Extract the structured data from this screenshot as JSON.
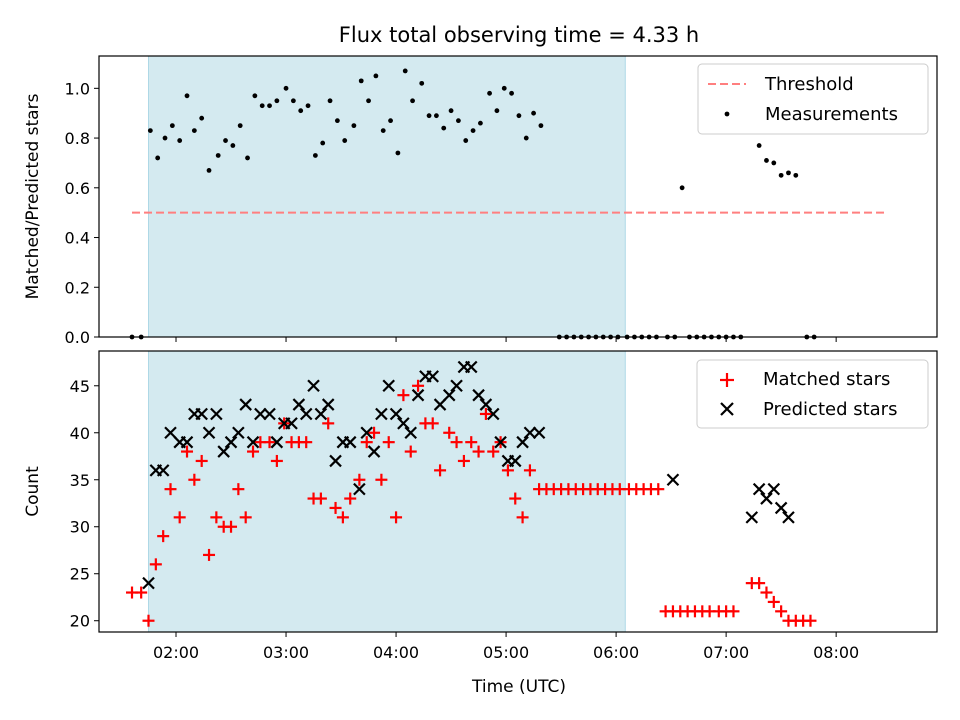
{
  "chart_data": [
    {
      "type": "scatter",
      "title": "Flux total observing time = 4.33 h",
      "xlabel": "",
      "ylabel": "Matched/Predicted stars",
      "xlim": [
        "01:18",
        "08:55"
      ],
      "ylim": [
        0.0,
        1.13
      ],
      "yticks": [
        0.0,
        0.2,
        0.4,
        0.6,
        0.8,
        1.0
      ],
      "ytick_labels": [
        "0.0",
        "0.2",
        "0.4",
        "0.6",
        "0.8",
        "1.0"
      ],
      "legend_position": "top-right",
      "shaded_interval": {
        "start": "01:45",
        "end": "06:05",
        "color": "#d4eaf0"
      },
      "threshold": {
        "name": "Threshold",
        "value": 0.5,
        "x_start": "01:36",
        "x_end": "08:28",
        "color": "#ff7f7f"
      },
      "series": [
        {
          "name": "Measurements",
          "color": "#000000",
          "points": [
            [
              "01:36",
              0.0
            ],
            [
              "01:41",
              0.0
            ],
            [
              "01:46",
              0.83
            ],
            [
              "01:50",
              0.72
            ],
            [
              "01:54",
              0.8
            ],
            [
              "01:58",
              0.85
            ],
            [
              "02:02",
              0.79
            ],
            [
              "02:06",
              0.97
            ],
            [
              "02:10",
              0.83
            ],
            [
              "02:14",
              0.88
            ],
            [
              "02:18",
              0.67
            ],
            [
              "02:23",
              0.73
            ],
            [
              "02:27",
              0.79
            ],
            [
              "02:31",
              0.77
            ],
            [
              "02:35",
              0.85
            ],
            [
              "02:39",
              0.72
            ],
            [
              "02:43",
              0.97
            ],
            [
              "02:47",
              0.93
            ],
            [
              "02:51",
              0.93
            ],
            [
              "02:55",
              0.95
            ],
            [
              "03:00",
              1.0
            ],
            [
              "03:04",
              0.95
            ],
            [
              "03:08",
              0.91
            ],
            [
              "03:12",
              0.93
            ],
            [
              "03:16",
              0.73
            ],
            [
              "03:20",
              0.78
            ],
            [
              "03:24",
              0.95
            ],
            [
              "03:28",
              0.87
            ],
            [
              "03:32",
              0.79
            ],
            [
              "03:37",
              0.85
            ],
            [
              "03:41",
              1.03
            ],
            [
              "03:45",
              0.95
            ],
            [
              "03:49",
              1.05
            ],
            [
              "03:53",
              0.83
            ],
            [
              "03:57",
              0.87
            ],
            [
              "04:01",
              0.74
            ],
            [
              "04:05",
              1.07
            ],
            [
              "04:09",
              0.95
            ],
            [
              "04:14",
              1.02
            ],
            [
              "04:18",
              0.89
            ],
            [
              "04:22",
              0.89
            ],
            [
              "04:26",
              0.84
            ],
            [
              "04:30",
              0.91
            ],
            [
              "04:34",
              0.87
            ],
            [
              "04:38",
              0.79
            ],
            [
              "04:42",
              0.83
            ],
            [
              "04:46",
              0.86
            ],
            [
              "04:51",
              0.98
            ],
            [
              "04:55",
              0.91
            ],
            [
              "04:59",
              1.0
            ],
            [
              "05:03",
              0.98
            ],
            [
              "05:07",
              0.89
            ],
            [
              "05:11",
              0.8
            ],
            [
              "05:15",
              0.9
            ],
            [
              "05:19",
              0.85
            ],
            [
              "05:29",
              0.0
            ],
            [
              "05:33",
              0.0
            ],
            [
              "05:37",
              0.0
            ],
            [
              "05:41",
              0.0
            ],
            [
              "05:45",
              0.0
            ],
            [
              "05:49",
              0.0
            ],
            [
              "05:53",
              0.0
            ],
            [
              "05:57",
              0.0
            ],
            [
              "06:01",
              0.0
            ],
            [
              "06:06",
              0.0
            ],
            [
              "06:10",
              0.0
            ],
            [
              "06:14",
              0.0
            ],
            [
              "06:18",
              0.0
            ],
            [
              "06:22",
              0.0
            ],
            [
              "06:28",
              0.0
            ],
            [
              "06:32",
              0.0
            ],
            [
              "06:36",
              0.6
            ],
            [
              "06:40",
              0.0
            ],
            [
              "06:44",
              0.0
            ],
            [
              "06:48",
              0.0
            ],
            [
              "06:52",
              0.0
            ],
            [
              "06:56",
              0.0
            ],
            [
              "07:00",
              0.0
            ],
            [
              "07:04",
              0.0
            ],
            [
              "07:08",
              0.0
            ],
            [
              "07:18",
              0.77
            ],
            [
              "07:22",
              0.71
            ],
            [
              "07:26",
              0.7
            ],
            [
              "07:30",
              0.65
            ],
            [
              "07:34",
              0.66
            ],
            [
              "07:38",
              0.65
            ],
            [
              "07:44",
              0.0
            ],
            [
              "07:48",
              0.0
            ]
          ]
        }
      ]
    },
    {
      "type": "scatter",
      "xlabel": "Time (UTC)",
      "ylabel": "Count",
      "xlim": [
        "01:18",
        "08:55"
      ],
      "ylim": [
        18.8,
        48.7
      ],
      "xticks": [
        "02:00",
        "03:00",
        "04:00",
        "05:00",
        "06:00",
        "07:00",
        "08:00"
      ],
      "yticks": [
        20,
        25,
        30,
        35,
        40,
        45
      ],
      "ytick_labels": [
        "20",
        "25",
        "30",
        "35",
        "40",
        "45"
      ],
      "legend_position": "top-right",
      "shaded_interval": {
        "start": "01:45",
        "end": "06:05",
        "color": "#d4eaf0"
      },
      "series": [
        {
          "name": "Matched stars",
          "marker": "plus",
          "color": "#ff0000",
          "points": [
            [
              "01:36",
              23
            ],
            [
              "01:41",
              23
            ],
            [
              "01:45",
              20
            ],
            [
              "01:49",
              26
            ],
            [
              "01:53",
              29
            ],
            [
              "01:57",
              34
            ],
            [
              "02:02",
              31
            ],
            [
              "02:06",
              38
            ],
            [
              "02:10",
              35
            ],
            [
              "02:14",
              37
            ],
            [
              "02:18",
              27
            ],
            [
              "02:22",
              31
            ],
            [
              "02:26",
              30
            ],
            [
              "02:30",
              30
            ],
            [
              "02:34",
              34
            ],
            [
              "02:38",
              31
            ],
            [
              "02:42",
              38
            ],
            [
              "02:46",
              39
            ],
            [
              "02:51",
              39
            ],
            [
              "02:55",
              37
            ],
            [
              "02:59",
              41
            ],
            [
              "03:03",
              39
            ],
            [
              "03:07",
              39
            ],
            [
              "03:11",
              39
            ],
            [
              "03:15",
              33
            ],
            [
              "03:19",
              33
            ],
            [
              "03:23",
              41
            ],
            [
              "03:27",
              32
            ],
            [
              "03:31",
              31
            ],
            [
              "03:35",
              33
            ],
            [
              "03:40",
              35
            ],
            [
              "03:44",
              39
            ],
            [
              "03:48",
              40
            ],
            [
              "03:52",
              35
            ],
            [
              "03:56",
              39
            ],
            [
              "04:00",
              31
            ],
            [
              "04:04",
              44
            ],
            [
              "04:08",
              38
            ],
            [
              "04:12",
              45
            ],
            [
              "04:16",
              41
            ],
            [
              "04:20",
              41
            ],
            [
              "04:24",
              36
            ],
            [
              "04:29",
              40
            ],
            [
              "04:33",
              39
            ],
            [
              "04:37",
              37
            ],
            [
              "04:41",
              39
            ],
            [
              "04:45",
              38
            ],
            [
              "04:49",
              42
            ],
            [
              "04:53",
              38
            ],
            [
              "04:57",
              39
            ],
            [
              "05:01",
              36
            ],
            [
              "05:05",
              33
            ],
            [
              "05:09",
              31
            ],
            [
              "05:13",
              36
            ],
            [
              "05:18",
              34
            ],
            [
              "05:22",
              34
            ],
            [
              "05:26",
              34
            ],
            [
              "05:30",
              34
            ],
            [
              "05:34",
              34
            ],
            [
              "05:38",
              34
            ],
            [
              "05:42",
              34
            ],
            [
              "05:46",
              34
            ],
            [
              "05:50",
              34
            ],
            [
              "05:54",
              34
            ],
            [
              "05:58",
              34
            ],
            [
              "06:02",
              34
            ],
            [
              "06:07",
              34
            ],
            [
              "06:11",
              34
            ],
            [
              "06:15",
              34
            ],
            [
              "06:19",
              34
            ],
            [
              "06:23",
              34
            ],
            [
              "06:27",
              21
            ],
            [
              "06:31",
              21
            ],
            [
              "06:35",
              21
            ],
            [
              "06:39",
              21
            ],
            [
              "06:43",
              21
            ],
            [
              "06:47",
              21
            ],
            [
              "06:51",
              21
            ],
            [
              "06:56",
              21
            ],
            [
              "07:00",
              21
            ],
            [
              "07:04",
              21
            ],
            [
              "07:14",
              24
            ],
            [
              "07:18",
              24
            ],
            [
              "07:22",
              23
            ],
            [
              "07:26",
              22
            ],
            [
              "07:30",
              21
            ],
            [
              "07:34",
              20
            ],
            [
              "07:38",
              20
            ],
            [
              "07:42",
              20
            ],
            [
              "07:46",
              20
            ]
          ]
        },
        {
          "name": "Predicted stars",
          "marker": "x",
          "color": "#000000",
          "points": [
            [
              "01:45",
              24
            ],
            [
              "01:49",
              36
            ],
            [
              "01:53",
              36
            ],
            [
              "01:57",
              40
            ],
            [
              "02:02",
              39
            ],
            [
              "02:06",
              39
            ],
            [
              "02:10",
              42
            ],
            [
              "02:14",
              42
            ],
            [
              "02:18",
              40
            ],
            [
              "02:22",
              42
            ],
            [
              "02:26",
              38
            ],
            [
              "02:30",
              39
            ],
            [
              "02:34",
              40
            ],
            [
              "02:38",
              43
            ],
            [
              "02:42",
              39
            ],
            [
              "02:46",
              42
            ],
            [
              "02:51",
              42
            ],
            [
              "02:55",
              39
            ],
            [
              "02:59",
              41
            ],
            [
              "03:03",
              41
            ],
            [
              "03:07",
              43
            ],
            [
              "03:11",
              42
            ],
            [
              "03:15",
              45
            ],
            [
              "03:19",
              42
            ],
            [
              "03:23",
              43
            ],
            [
              "03:27",
              37
            ],
            [
              "03:31",
              39
            ],
            [
              "03:35",
              39
            ],
            [
              "03:40",
              34
            ],
            [
              "03:44",
              40
            ],
            [
              "03:48",
              38
            ],
            [
              "03:52",
              42
            ],
            [
              "03:56",
              45
            ],
            [
              "04:00",
              42
            ],
            [
              "04:04",
              41
            ],
            [
              "04:08",
              40
            ],
            [
              "04:12",
              44
            ],
            [
              "04:16",
              46
            ],
            [
              "04:20",
              46
            ],
            [
              "04:24",
              43
            ],
            [
              "04:29",
              44
            ],
            [
              "04:33",
              45
            ],
            [
              "04:37",
              47
            ],
            [
              "04:41",
              47
            ],
            [
              "04:45",
              44
            ],
            [
              "04:49",
              43
            ],
            [
              "04:53",
              42
            ],
            [
              "04:57",
              39
            ],
            [
              "05:01",
              37
            ],
            [
              "05:05",
              37
            ],
            [
              "05:09",
              39
            ],
            [
              "05:13",
              40
            ],
            [
              "05:18",
              40
            ],
            [
              "06:31",
              35
            ],
            [
              "07:14",
              31
            ],
            [
              "07:18",
              34
            ],
            [
              "07:22",
              33
            ],
            [
              "07:26",
              34
            ],
            [
              "07:30",
              32
            ],
            [
              "07:34",
              31
            ]
          ]
        }
      ]
    }
  ]
}
